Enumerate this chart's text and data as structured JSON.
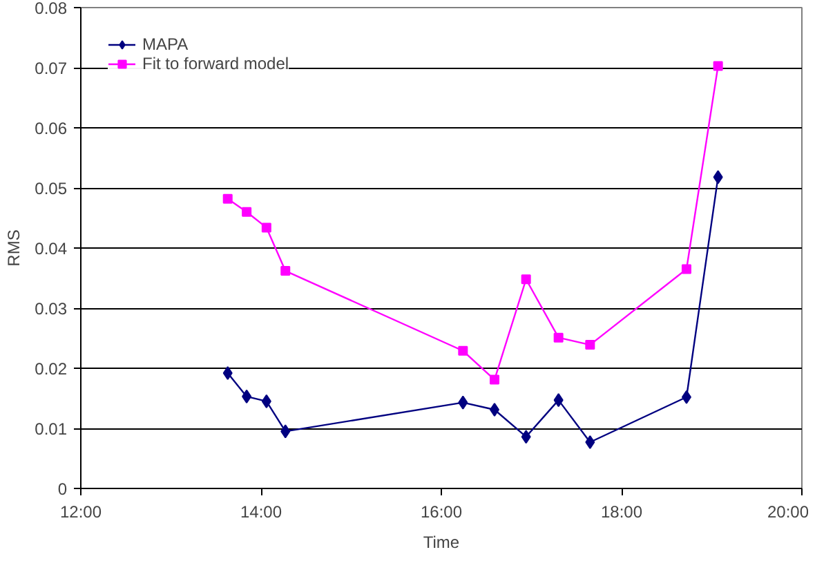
{
  "chart_data": {
    "type": "line",
    "xlabel": "Time",
    "ylabel": "RMS",
    "x": [
      13.63,
      13.84,
      14.06,
      14.27,
      16.24,
      16.59,
      16.94,
      17.3,
      17.65,
      18.72,
      19.07
    ],
    "series": [
      {
        "name": "MAPA",
        "color": "#000080",
        "marker": "diamond",
        "values": [
          0.0192,
          0.0153,
          0.0145,
          0.0095,
          0.0143,
          0.0131,
          0.0086,
          0.0147,
          0.0077,
          0.0152,
          0.0518
        ]
      },
      {
        "name": "Fit to forward model",
        "color": "#ff00ff",
        "marker": "square",
        "values": [
          0.0482,
          0.046,
          0.0434,
          0.0362,
          0.0229,
          0.0181,
          0.0348,
          0.0251,
          0.0239,
          0.0365,
          0.0703
        ]
      }
    ],
    "xlim": [
      12,
      20
    ],
    "xticks": [
      {
        "value": 12,
        "label": "12:00"
      },
      {
        "value": 14,
        "label": "14:00"
      },
      {
        "value": 16,
        "label": "16:00"
      },
      {
        "value": 18,
        "label": "18:00"
      },
      {
        "value": 20,
        "label": "20:00"
      }
    ],
    "ylim": [
      0,
      0.08
    ],
    "yticks": [
      {
        "value": 0,
        "label": "0"
      },
      0.01,
      0.02,
      0.03,
      0.04,
      0.05,
      0.06,
      0.07,
      0.08
    ],
    "grid": "y",
    "legend": "top left",
    "line_style": "solid"
  }
}
